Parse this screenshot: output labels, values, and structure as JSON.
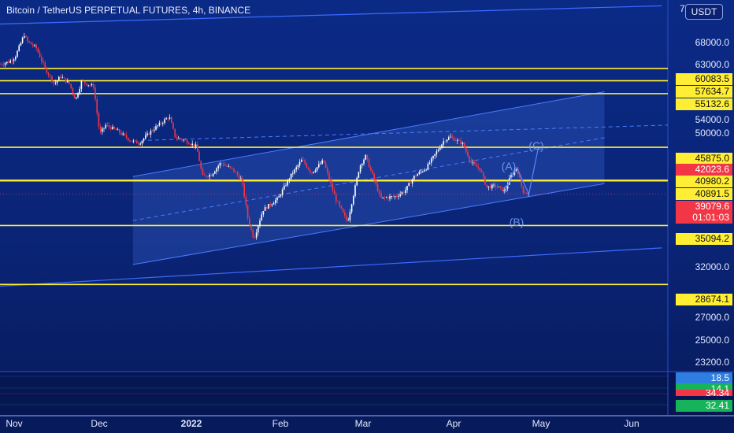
{
  "title": "Bitcoin / TetherUS PERPETUAL FUTURES, 4h, BINANCE",
  "currency_button": "USDT",
  "top_clip_char": "7",
  "colors": {
    "background": "#0b2a86",
    "horizontal_level": "#ffee33",
    "channel_line": "#3d6bff",
    "candle_up": "#ffffff",
    "candle_down": "#f23645",
    "indicator_bg": "#061653"
  },
  "price_axis": {
    "ticks": [
      "68000.0",
      "63000.0",
      "54000.0",
      "50000.0",
      "32000.0",
      "27000.0",
      "25000.0",
      "23200.0"
    ]
  },
  "levels": [
    "60083.5",
    "57634.7",
    "55132.6",
    "45875.0",
    "40980.2",
    "40891.5",
    "35094.2",
    "28674.1"
  ],
  "badges": {
    "last_price": "39079.6",
    "countdown": "01:01:03",
    "red_level": "42023.6"
  },
  "indicator_badges": [
    "18.5",
    "14.1",
    "34.34",
    "32.41"
  ],
  "wave_labels": [
    "(C)",
    "(A)",
    "(B)"
  ],
  "time_axis": [
    "Nov",
    "Dec",
    "2022",
    "Feb",
    "Mar",
    "Apr",
    "May",
    "Jun"
  ],
  "chart_data": {
    "type": "candlestick",
    "title": "Bitcoin / TetherUS PERPETUAL FUTURES, 4h, BINANCE",
    "y_scale": "log",
    "ylim": [
      21500,
      76000
    ],
    "x_range": [
      "2021-11-01",
      "2022-06-10"
    ],
    "x_ticks": [
      "Nov",
      "Dec",
      "2022",
      "Feb",
      "Mar",
      "Apr",
      "May",
      "Jun"
    ],
    "path": [
      [
        "2021-11-01",
        61000
      ],
      [
        "2021-11-04",
        61500
      ],
      [
        "2021-11-06",
        62500
      ],
      [
        "2021-11-09",
        67500
      ],
      [
        "2021-11-10",
        66000
      ],
      [
        "2021-11-13",
        64500
      ],
      [
        "2021-11-16",
        60000
      ],
      [
        "2021-11-19",
        57000
      ],
      [
        "2021-11-21",
        58500
      ],
      [
        "2021-11-24",
        57000
      ],
      [
        "2021-11-26",
        54000
      ],
      [
        "2021-11-28",
        57500
      ],
      [
        "2021-11-30",
        57000
      ],
      [
        "2021-12-02",
        56500
      ],
      [
        "2021-12-04",
        48000
      ],
      [
        "2021-12-06",
        49500
      ],
      [
        "2021-12-10",
        48500
      ],
      [
        "2021-12-14",
        47000
      ],
      [
        "2021-12-17",
        46500
      ],
      [
        "2021-12-21",
        48500
      ],
      [
        "2021-12-27",
        51000
      ],
      [
        "2021-12-29",
        47500
      ],
      [
        "2022-01-01",
        47000
      ],
      [
        "2022-01-05",
        46000
      ],
      [
        "2022-01-07",
        41500
      ],
      [
        "2022-01-10",
        41800
      ],
      [
        "2022-01-13",
        43500
      ],
      [
        "2022-01-17",
        42500
      ],
      [
        "2022-01-20",
        41000
      ],
      [
        "2022-01-22",
        36000
      ],
      [
        "2022-01-24",
        33500
      ],
      [
        "2022-01-27",
        37000
      ],
      [
        "2022-02-01",
        38500
      ],
      [
        "2022-02-05",
        41500
      ],
      [
        "2022-02-09",
        44000
      ],
      [
        "2022-02-12",
        42000
      ],
      [
        "2022-02-16",
        43800
      ],
      [
        "2022-02-20",
        38500
      ],
      [
        "2022-02-24",
        35500
      ],
      [
        "2022-02-28",
        43000
      ],
      [
        "2022-03-02",
        44500
      ],
      [
        "2022-03-07",
        38500
      ],
      [
        "2022-03-12",
        38800
      ],
      [
        "2022-03-15",
        39500
      ],
      [
        "2022-03-18",
        41500
      ],
      [
        "2022-03-22",
        42700
      ],
      [
        "2022-03-28",
        47000
      ],
      [
        "2022-03-30",
        47500
      ],
      [
        "2022-04-03",
        46500
      ],
      [
        "2022-04-06",
        43500
      ],
      [
        "2022-04-09",
        42500
      ],
      [
        "2022-04-11",
        40000
      ],
      [
        "2022-04-14",
        40200
      ],
      [
        "2022-04-17",
        39500
      ],
      [
        "2022-04-19",
        41500
      ],
      [
        "2022-04-21",
        42800
      ],
      [
        "2022-04-23",
        39500
      ],
      [
        "2022-04-25",
        39100
      ]
    ],
    "horizontal_levels": [
      60083.5,
      57634.7,
      55132.6,
      45875.0,
      40980.2,
      40891.5,
      35094.2,
      28674.1
    ],
    "last_price": 39079.6,
    "channel": [
      {
        "from": [
          "2021-11-01",
          70000
        ],
        "to": [
          "2022-06-08",
          74500
        ]
      },
      {
        "from": [
          "2021-11-01",
          28500
        ],
        "to": [
          "2022-06-08",
          32500
        ]
      }
    ],
    "inner_channel": [
      {
        "from": [
          "2021-12-15",
          41500
        ],
        "to": [
          "2022-05-20",
          55500
        ]
      },
      {
        "from": [
          "2021-12-15",
          30700
        ],
        "to": [
          "2022-05-20",
          40500
        ]
      }
    ],
    "wave_labels": [
      {
        "text": "(C)",
        "date": "2022-04-26",
        "price": 47000
      },
      {
        "text": "(A)",
        "date": "2022-04-21",
        "price": 44000
      },
      {
        "text": "(B)",
        "date": "2022-04-22",
        "price": 37900
      }
    ]
  }
}
